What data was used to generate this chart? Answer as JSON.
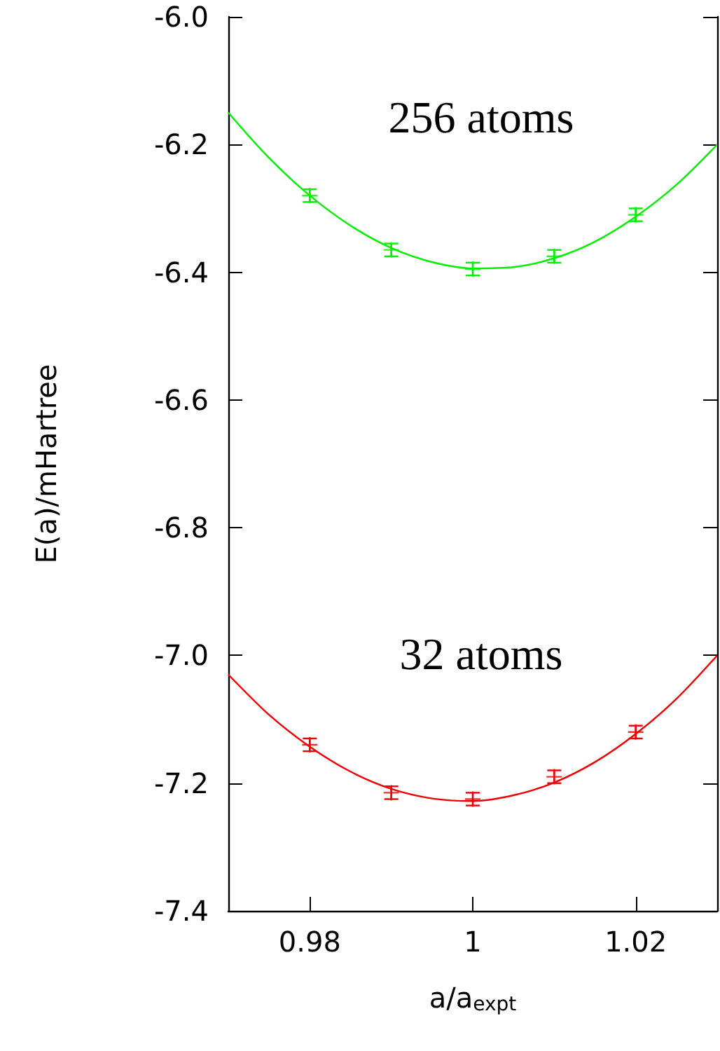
{
  "chart_data": {
    "type": "scatter",
    "xlabel": "a/a$_{expt}$",
    "ylabel": "E(a)/mHartree",
    "xlim": [
      0.97,
      1.03
    ],
    "xticks": [
      0.98,
      1,
      1.02
    ],
    "ylim": [
      -7.4,
      -6.0
    ],
    "yticks": [
      {
        "value": -7.4,
        "label": "-7.4"
      },
      -7.2,
      {
        "value": -7.0,
        "label": "-7.0"
      },
      -6.8,
      -6.6,
      -6.4,
      -6.2,
      {
        "value": -6.0,
        "label": "-6.0"
      }
    ],
    "grid": false,
    "legend": false,
    "marker": "cross",
    "series": [
      {
        "name": "256 atoms",
        "color": "#00ee00",
        "x": [
          0.98,
          0.99,
          1.0,
          1.01,
          1.02
        ],
        "values": [
          -6.28,
          -6.365,
          -6.395,
          -6.375,
          -6.31
        ],
        "errors": [
          0.01,
          0.01,
          0.01,
          0.01,
          0.01
        ]
      },
      {
        "type": "line",
        "color": "#00ee00",
        "marker": "none",
        "x": [
          0.97,
          0.975,
          0.98,
          0.985,
          0.99,
          0.995,
          1.0,
          1.005,
          1.01,
          1.015,
          1.02,
          1.025,
          1.03
        ],
        "values": [
          -6.15,
          -6.221,
          -6.28,
          -6.327,
          -6.362,
          -6.384,
          -6.394,
          -6.392,
          -6.378,
          -6.352,
          -6.313,
          -6.263,
          -6.2
        ]
      },
      {
        "name": "32 atoms",
        "color": "#ee0000",
        "x": [
          0.98,
          0.99,
          1.0,
          1.01,
          1.02
        ],
        "values": [
          -7.14,
          -7.215,
          -7.225,
          -7.19,
          -7.12
        ],
        "errors": [
          0.01,
          0.01,
          0.01,
          0.01,
          0.01
        ]
      },
      {
        "type": "line",
        "color": "#ee0000",
        "marker": "none",
        "x": [
          0.97,
          0.975,
          0.98,
          0.985,
          0.99,
          0.995,
          1.0,
          1.005,
          1.01,
          1.015,
          1.02,
          1.025,
          1.03
        ],
        "values": [
          -7.03,
          -7.093,
          -7.143,
          -7.182,
          -7.209,
          -7.224,
          -7.228,
          -7.219,
          -7.199,
          -7.167,
          -7.123,
          -7.068,
          -7.0
        ]
      }
    ]
  }
}
